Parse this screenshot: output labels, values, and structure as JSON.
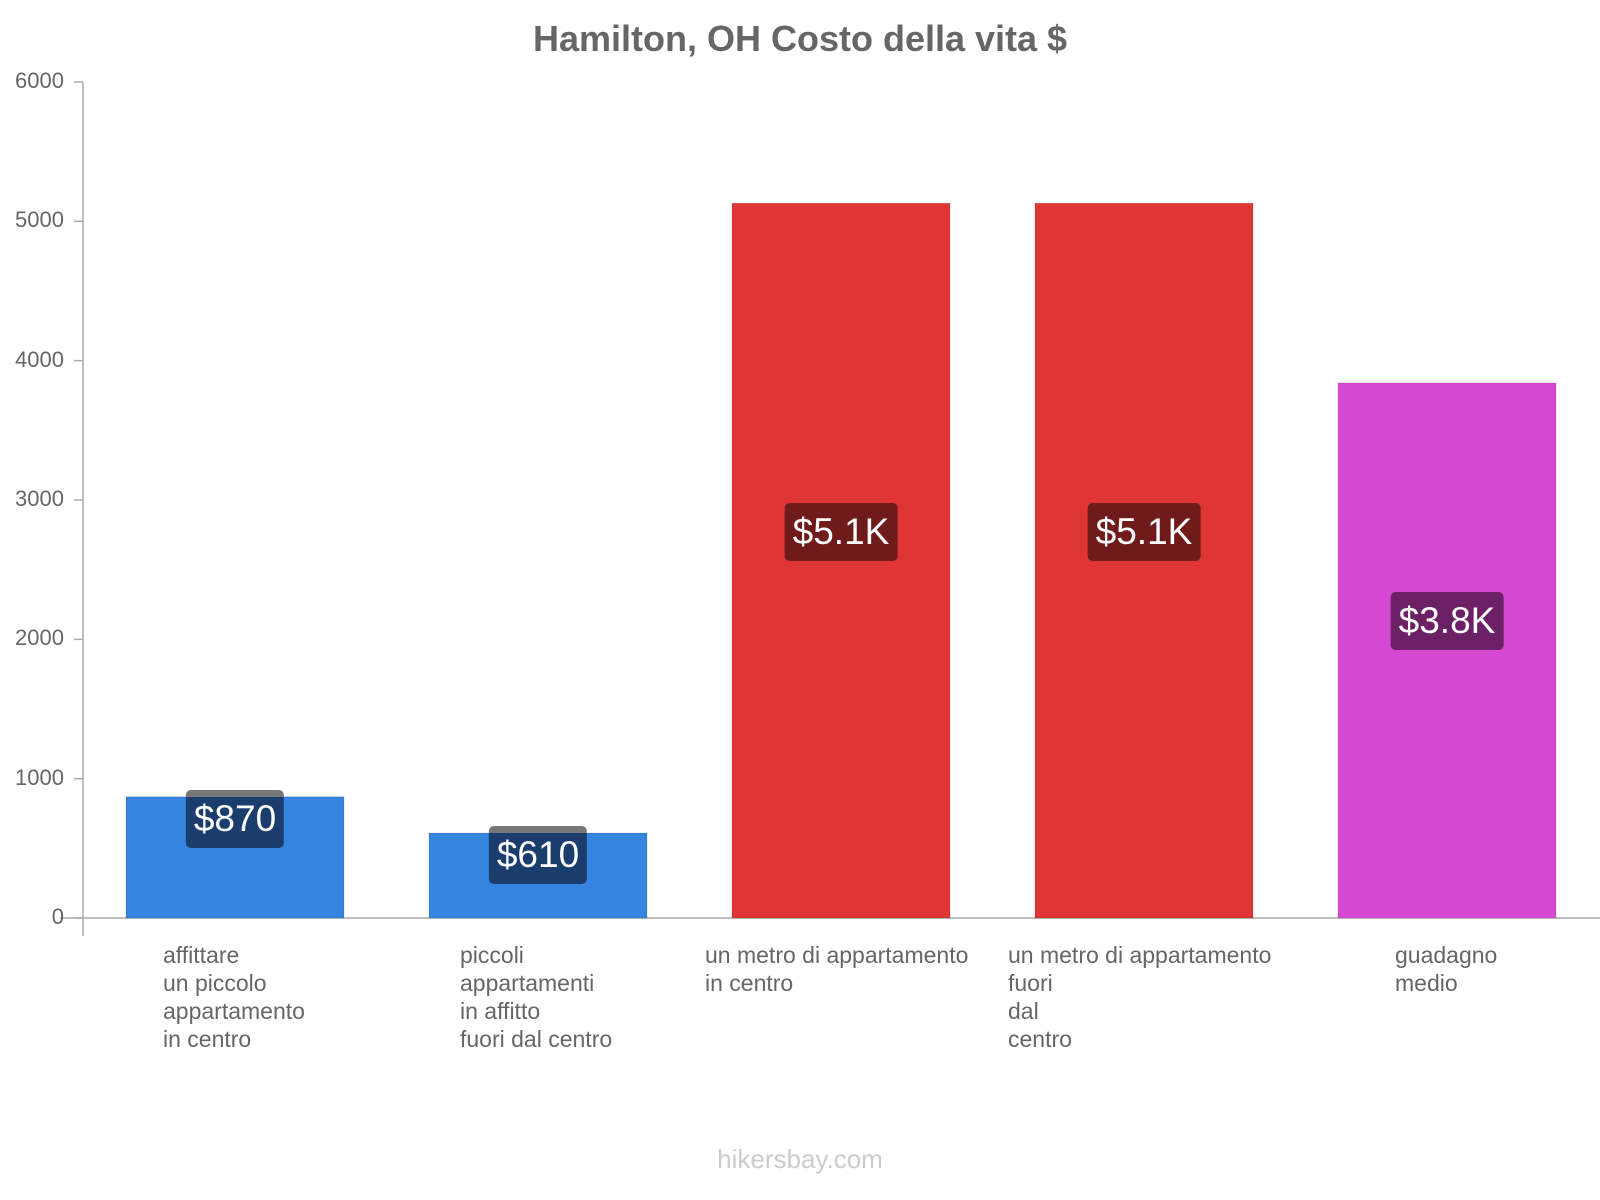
{
  "chart_data": {
    "type": "bar",
    "title": "Hamilton, OH Costo della vita $",
    "categories": [
      "affittare\nun piccolo\nappartamento\nin centro",
      "piccoli\nappartamenti\nin affitto\nfuori dal centro",
      "un metro di appartamento\nin centro",
      "un metro di appartamento\nfuori\ndal\ncentro",
      "guadagno\nmedio"
    ],
    "values": [
      870,
      610,
      5130,
      5130,
      3840
    ],
    "value_labels": [
      "$870",
      "$610",
      "$5.1K",
      "$5.1K",
      "$3.8K"
    ],
    "colors": [
      "#3584e0",
      "#3584e0",
      "#e03535",
      "#e03535",
      "#d64ad3"
    ],
    "label_colors": [
      "#1b3d6e",
      "#1b3d6e",
      "#701b1b",
      "#701b1b",
      "#6c2066"
    ],
    "yticks": [
      "0",
      "1000",
      "2000",
      "3000",
      "4000",
      "5000",
      "6000"
    ],
    "ylim": [
      0,
      6000
    ],
    "xlabel": "",
    "ylabel": "",
    "grid": false
  },
  "footer": "hikersbay.com"
}
